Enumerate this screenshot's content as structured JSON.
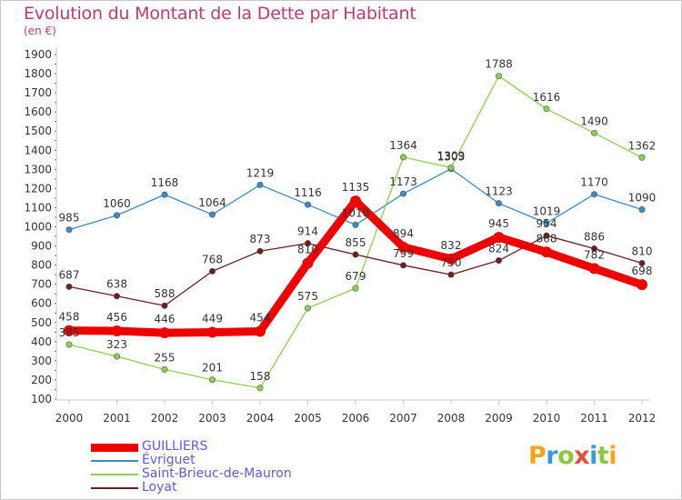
{
  "title": "Evolution du Montant de la Dette par Habitant",
  "subtitle": "(en €)",
  "logo": {
    "letters": [
      "P",
      "r",
      "o",
      "x",
      "i",
      "t",
      "i"
    ],
    "colors": [
      "#f7a31c",
      "#3a9ad9",
      "#8dc63f",
      "#e94e3d",
      "#3a9ad9",
      "#8dc63f",
      "#f7a31c"
    ]
  },
  "chart_data": {
    "type": "line",
    "title": "Evolution du Montant de la Dette par Habitant",
    "subtitle": "(en €)",
    "xlabel": "",
    "ylabel": "",
    "x": [
      "2000",
      "2001",
      "2002",
      "2003",
      "2004",
      "2005",
      "2006",
      "2007",
      "2008",
      "2009",
      "2010",
      "2011",
      "2012"
    ],
    "y_ticks": [
      "100",
      "200",
      "300",
      "400",
      "500",
      "600",
      "700",
      "800",
      "900",
      "1000",
      "1100",
      "1200",
      "1300",
      "1400",
      "1500",
      "1600",
      "1700",
      "1800",
      "1900"
    ],
    "ylim": [
      100,
      1900
    ],
    "grid": false,
    "legend_position": "bottom-left",
    "series": [
      {
        "name": "GUILLIERS",
        "color": "#ee0000",
        "values": [
          458,
          456,
          446,
          449,
          454,
          810,
          1135,
          894,
          832,
          945,
          868,
          782,
          698
        ],
        "labels": [
          "458",
          "456",
          "446",
          "449",
          "454",
          "810",
          "1135",
          "894",
          "832",
          "945",
          "868",
          "782",
          "698"
        ]
      },
      {
        "name": "Évriguet",
        "color": "#3c8ac8",
        "values": [
          985,
          1060,
          1168,
          1064,
          1219,
          1116,
          1010,
          1173,
          1303,
          1123,
          1019,
          1170,
          1090
        ],
        "labels": [
          "985",
          "1060",
          "1168",
          "1064",
          "1219",
          "1116",
          "1010",
          "1173",
          "1303",
          "1123",
          "1019",
          "1170",
          "1090"
        ]
      },
      {
        "name": "Saint-Brieuc-de-Mauron",
        "color": "#8ecf52",
        "values": [
          385,
          323,
          255,
          201,
          158,
          575,
          679,
          1364,
          1309,
          1788,
          1616,
          1490,
          1362
        ],
        "labels": [
          "385",
          "323",
          "255",
          "201",
          "158",
          "575",
          "679",
          "1364",
          "1309",
          "1788",
          "1616",
          "1490",
          "1362"
        ]
      },
      {
        "name": "Loyat",
        "color": "#6b1e1e",
        "values": [
          687,
          638,
          588,
          768,
          873,
          914,
          855,
          799,
          750,
          824,
          954,
          886,
          810
        ],
        "labels": [
          "687",
          "638",
          "588",
          "768",
          "873",
          "914",
          "855",
          "799",
          "750",
          "824",
          "954",
          "886",
          "810"
        ]
      }
    ]
  }
}
